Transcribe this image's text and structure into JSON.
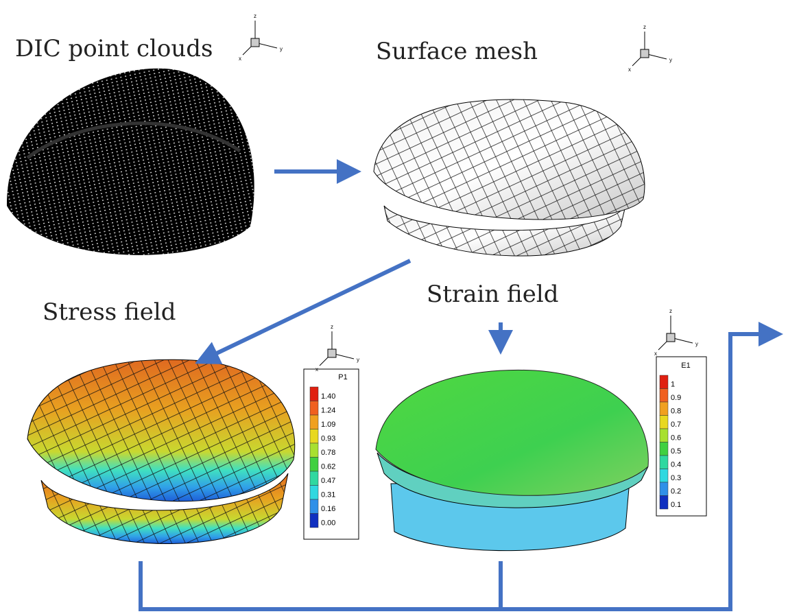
{
  "labels": {
    "point_clouds": "DIC point clouds",
    "surface_mesh": "Surface mesh",
    "stress_field": "Stress field",
    "strain_field": "Strain field"
  },
  "triads": [
    {
      "z": "z",
      "x": "x",
      "y": "y"
    },
    {
      "z": "z",
      "x": "x",
      "y": "y"
    },
    {
      "z": "z",
      "x": "x",
      "y": "y"
    },
    {
      "z": "z",
      "x": "x",
      "y": "y"
    }
  ],
  "stress_legend": {
    "title": "P1",
    "labels": [
      "1.40",
      "1.24",
      "1.09",
      "0.93",
      "0.78",
      "0.62",
      "0.47",
      "0.31",
      "0.16",
      "0.00"
    ]
  },
  "strain_legend": {
    "title": "E1",
    "labels": [
      "1",
      "0.9",
      "0.8",
      "0.7",
      "0.6",
      "0.5",
      "0.4",
      "0.3",
      "0.2",
      "0.1"
    ]
  }
}
